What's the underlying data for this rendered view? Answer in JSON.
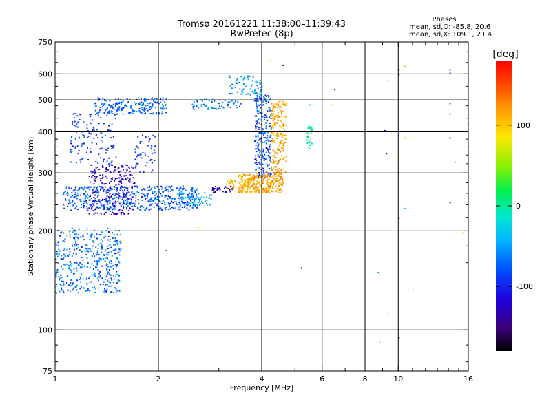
{
  "chart_data": {
    "type": "scatter",
    "title": "Tromsø 20161221 11:38:00–11:39:43",
    "subtitle": "RwPretec (8p)",
    "xlabel": "Frequency [MHz]",
    "ylabel": "Stationary phase Virtual Height [km]",
    "x_scale": "log",
    "y_scale": "log",
    "xlim": [
      1,
      16
    ],
    "ylim": [
      75,
      750
    ],
    "x_ticks": [
      1,
      2,
      4,
      6,
      8,
      10,
      16
    ],
    "y_ticks": [
      75,
      100,
      200,
      300,
      400,
      500,
      600,
      750
    ],
    "grid": true,
    "stats": {
      "heading": "Phases",
      "line_o": "mean, sd,O: -85.8, 20.6",
      "line_x": "mean, sd,X: 109.1, 21.4"
    },
    "colorbar": {
      "label": "[deg]",
      "range": [
        -180,
        180
      ],
      "ticks": [
        {
          "value": 100,
          "label": "100"
        },
        {
          "value": 0,
          "label": "0"
        },
        {
          "value": -100,
          "label": "-100"
        }
      ]
    },
    "color_encodes": "phase",
    "clusters": [
      {
        "x": [
          1.0,
          1.55
        ],
        "y": [
          130,
          205
        ],
        "phase": [
          -95,
          -40
        ],
        "n": 420
      },
      {
        "x": [
          1.25,
          1.7
        ],
        "y": [
          225,
          320
        ],
        "phase": [
          -140,
          -100
        ],
        "n": 260
      },
      {
        "x": [
          1.05,
          2.6
        ],
        "y": [
          232,
          275
        ],
        "phase": [
          -105,
          -50
        ],
        "n": 480
      },
      {
        "x": [
          2.2,
          2.85
        ],
        "y": [
          240,
          262
        ],
        "phase": [
          -70,
          -35
        ],
        "n": 70
      },
      {
        "x": [
          1.3,
          2.1
        ],
        "y": [
          455,
          510
        ],
        "phase": [
          -95,
          -50
        ],
        "n": 200
      },
      {
        "x": [
          2.5,
          3.5
        ],
        "y": [
          470,
          505
        ],
        "phase": [
          -85,
          -40
        ],
        "n": 60
      },
      {
        "x": [
          3.2,
          4.0
        ],
        "y": [
          520,
          600
        ],
        "phase": [
          -80,
          -30
        ],
        "n": 70
      },
      {
        "x": [
          1.1,
          1.5
        ],
        "y": [
          320,
          460
        ],
        "phase": [
          -110,
          -70
        ],
        "n": 120
      },
      {
        "x": [
          1.7,
          1.95
        ],
        "y": [
          300,
          400
        ],
        "phase": [
          -105,
          -75
        ],
        "n": 50
      },
      {
        "x": [
          2.85,
          3.3
        ],
        "y": [
          262,
          275
        ],
        "phase": [
          -140,
          -110
        ],
        "n": 40
      },
      {
        "x": [
          3.8,
          4.25
        ],
        "y": [
          290,
          520
        ],
        "phase": [
          -105,
          -55
        ],
        "n": 260
      },
      {
        "x": [
          3.4,
          4.6
        ],
        "y": [
          262,
          300
        ],
        "phase": [
          95,
          140
        ],
        "n": 300
      },
      {
        "x": [
          4.25,
          4.7
        ],
        "y": [
          300,
          500
        ],
        "phase": [
          95,
          135
        ],
        "n": 200
      },
      {
        "x": [
          3.1,
          3.7
        ],
        "y": [
          262,
          290
        ],
        "phase": [
          80,
          120
        ],
        "n": 40
      },
      {
        "x": [
          5.4,
          5.6
        ],
        "y": [
          355,
          420
        ],
        "phase": [
          -20,
          10
        ],
        "n": 30
      }
    ],
    "sparse_points": [
      {
        "x": 6.5,
        "y": 540,
        "phase": -120
      },
      {
        "x": 8.7,
        "y": 150,
        "phase": -60
      },
      {
        "x": 8.8,
        "y": 92,
        "phase": 120
      },
      {
        "x": 9.3,
        "y": 113,
        "phase": 80
      },
      {
        "x": 9.1,
        "y": 405,
        "phase": -110
      },
      {
        "x": 9.2,
        "y": 345,
        "phase": -120
      },
      {
        "x": 9.3,
        "y": 575,
        "phase": 60
      },
      {
        "x": 10.0,
        "y": 600,
        "phase": -120
      },
      {
        "x": 10.0,
        "y": 620,
        "phase": -100
      },
      {
        "x": 10.0,
        "y": 220,
        "phase": -120
      },
      {
        "x": 10.0,
        "y": 95,
        "phase": -140
      },
      {
        "x": 10.4,
        "y": 635,
        "phase": 110
      },
      {
        "x": 10.4,
        "y": 385,
        "phase": 100
      },
      {
        "x": 10.4,
        "y": 235,
        "phase": -40
      },
      {
        "x": 11.0,
        "y": 133,
        "phase": 60
      },
      {
        "x": 14.1,
        "y": 620,
        "phase": -130
      },
      {
        "x": 14.1,
        "y": 605,
        "phase": -120
      },
      {
        "x": 14.1,
        "y": 490,
        "phase": -80
      },
      {
        "x": 14.1,
        "y": 455,
        "phase": -50
      },
      {
        "x": 14.1,
        "y": 385,
        "phase": -110
      },
      {
        "x": 14.1,
        "y": 245,
        "phase": -120
      },
      {
        "x": 14.6,
        "y": 325,
        "phase": 130
      },
      {
        "x": 15.4,
        "y": 198,
        "phase": 100
      },
      {
        "x": 5.2,
        "y": 155,
        "phase": -130
      },
      {
        "x": 2.6,
        "y": 205,
        "phase": 90
      },
      {
        "x": 2.1,
        "y": 175,
        "phase": -80
      },
      {
        "x": 4.6,
        "y": 640,
        "phase": -140
      },
      {
        "x": 4.2,
        "y": 660,
        "phase": 80
      },
      {
        "x": 6.4,
        "y": 485,
        "phase": 100
      },
      {
        "x": 5.5,
        "y": 485,
        "phase": -10
      }
    ]
  }
}
